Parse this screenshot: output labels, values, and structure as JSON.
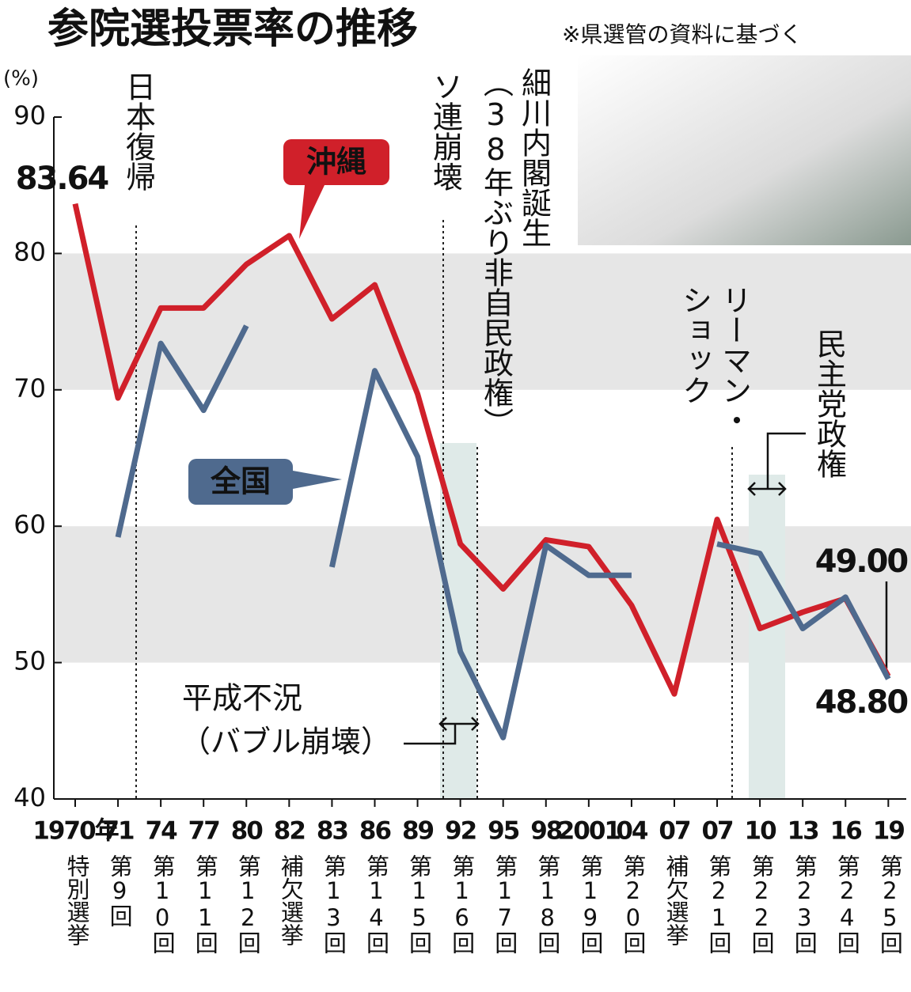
{
  "chart_data": {
    "type": "line",
    "title": "参院選投票率の推移",
    "subtitle": "※県選管の資料に基づく",
    "y_unit": "(%)",
    "categories": [
      "1970年",
      "71",
      "74",
      "77",
      "80",
      "82",
      "83",
      "86",
      "89",
      "92",
      "95",
      "98",
      "2001",
      "04",
      "07",
      "07",
      "10",
      "13",
      "16",
      "19"
    ],
    "category_sublabels": [
      "特別選挙",
      "第9回",
      "第10回",
      "第11回",
      "第12回",
      "補欠選挙",
      "第13回",
      "第14回",
      "第15回",
      "第16回",
      "第17回",
      "第18回",
      "第19回",
      "第20回",
      "補欠選挙",
      "第21回",
      "第22回",
      "第23回",
      "第24回",
      "第25回"
    ],
    "series": [
      {
        "name": "沖縄",
        "color": "#d0202a",
        "values": [
          83.64,
          69.4,
          76.0,
          76.0,
          79.2,
          81.3,
          75.2,
          77.7,
          69.7,
          58.7,
          55.4,
          59.0,
          58.5,
          54.2,
          47.7,
          60.5,
          52.5,
          53.7,
          54.7,
          49.0
        ],
        "value_labels": [
          "83.64",
          null,
          null,
          null,
          null,
          null,
          null,
          null,
          null,
          null,
          null,
          null,
          null,
          null,
          null,
          null,
          null,
          null,
          null,
          "49.00"
        ]
      },
      {
        "name": "全国",
        "color": "#4f6a8e",
        "values": [
          null,
          59.2,
          73.4,
          68.5,
          74.7,
          null,
          57.0,
          71.4,
          65.1,
          50.8,
          44.5,
          58.6,
          56.4,
          56.4,
          null,
          58.7,
          58.0,
          52.5,
          54.8,
          48.8
        ],
        "value_labels": [
          null,
          null,
          null,
          null,
          null,
          null,
          null,
          null,
          null,
          null,
          null,
          null,
          null,
          null,
          null,
          null,
          null,
          null,
          null,
          "48.80"
        ]
      }
    ],
    "ylim": [
      40,
      90
    ],
    "yticks": [
      40,
      50,
      60,
      70,
      80,
      90
    ],
    "annotations": [
      "日本復帰",
      "ソ連崩壊",
      "細川内閣誕生",
      "（38年ぶり非自民政権）",
      "リーマン・",
      "ショック",
      "民主党政権",
      "平成不況",
      "（バブル崩壊）"
    ]
  }
}
